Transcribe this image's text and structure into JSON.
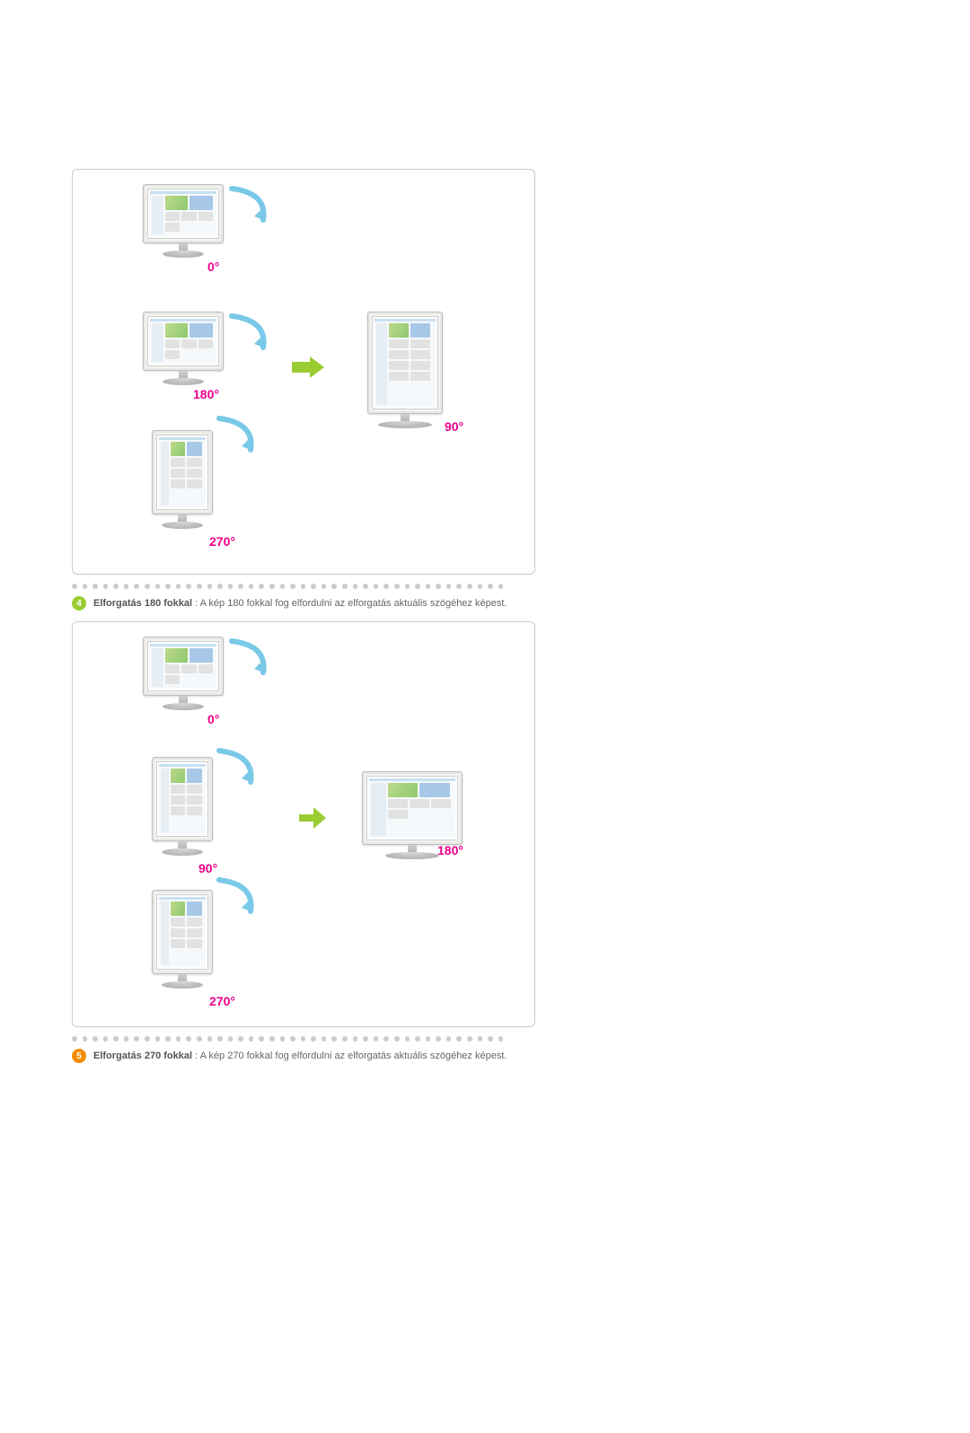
{
  "colors": {
    "border": "#cccccc",
    "dot": "#cccccc",
    "angle_label": "#ec008c",
    "arrow_green": "#9acd32",
    "rotation_arrow": "#79c9e8",
    "step4_bullet_bg": "#9acd32",
    "step5_bullet_bg": "#f28c00",
    "text": "#666666",
    "text_bold": "#555555"
  },
  "fonts": {
    "body_family": "Verdana, Arial, sans-serif",
    "step_size_pt": 8,
    "angle_label_size_pt": 11
  },
  "diagrams": [
    {
      "id": "rot90",
      "angles": {
        "top": "0°",
        "mid": "180°",
        "bottom": "270°",
        "result": "90°"
      },
      "left_orientations": [
        "landscape",
        "landscape",
        "portrait"
      ],
      "result_orientation": "portrait",
      "arrow_variant": "large"
    },
    {
      "id": "rot180",
      "angles": {
        "top": "0°",
        "mid": "90°",
        "bottom": "270°",
        "result": "180°"
      },
      "left_orientations": [
        "landscape",
        "portrait",
        "portrait"
      ],
      "result_orientation": "landscape",
      "arrow_variant": "small"
    }
  ],
  "steps": [
    {
      "bullet_number": "4",
      "bullet_color_key": "step4_bullet_bg",
      "title": "Elforgatás 180 fokkal",
      "separator": " : ",
      "desc": "A kép 180 fokkal fog elfordulni az elforgatás aktuális szögéhez képest."
    },
    {
      "bullet_number": "5",
      "bullet_color_key": "step5_bullet_bg",
      "title": "Elforgatás 270 fokkal",
      "separator": " : ",
      "desc": "A kép 270 fokkal fog elfordulni az elforgatás aktuális szögéhez képest."
    }
  ],
  "dot_count": 42
}
